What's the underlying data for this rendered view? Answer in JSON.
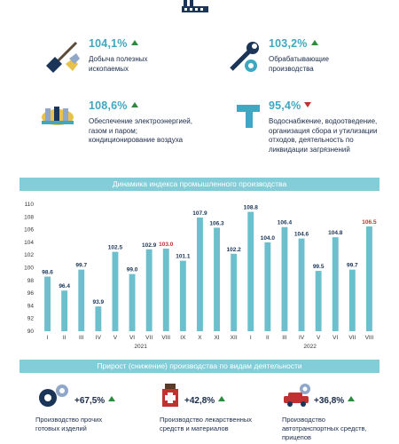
{
  "indicators": [
    {
      "pct": "104,1%",
      "trend": "up",
      "desc": "Добыча полезных ископаемых",
      "icon": "mining-shovel-icon"
    },
    {
      "pct": "103,2%",
      "trend": "up",
      "desc": "Обрабатывающие производства",
      "icon": "wrench-gear-icon"
    },
    {
      "pct": "108,6%",
      "trend": "up",
      "desc": "Обеспечение электроэнергией, газом и паром; кондиционирование воздуха",
      "icon": "power-plant-icon"
    },
    {
      "pct": "95,4%",
      "trend": "down",
      "desc": "Водоснабжение, водоотведение, организация сбора и утилизации отходов, деятельность по ликвидации загрязнений",
      "icon": "water-pipe-icon"
    }
  ],
  "chart_banner": "Динамика индекса промышленного производства",
  "growth_banner": "Прирост (снижение) производства по видам деятельности",
  "chart_data": {
    "type": "bar",
    "categories": [
      "I",
      "II",
      "III",
      "IV",
      "V",
      "VI",
      "VII",
      "VIII",
      "IX",
      "X",
      "XI",
      "XII",
      "I",
      "II",
      "III",
      "IV",
      "V",
      "VI",
      "VII",
      "VIII"
    ],
    "values": [
      98.6,
      96.4,
      99.7,
      93.9,
      102.5,
      99.0,
      102.9,
      103.0,
      101.1,
      107.9,
      106.3,
      102.2,
      108.8,
      104.0,
      106.4,
      104.6,
      99.5,
      104.8,
      99.7,
      106.5
    ],
    "value_labels": [
      "98.6",
      "96.4",
      "99.7",
      "93.9",
      "102.5",
      "99.0",
      "102.9",
      "103.0",
      "101.1",
      "107.9",
      "106.3",
      "102.2",
      "108.8",
      "104.0",
      "106.4",
      "104.6",
      "99.5",
      "104.8",
      "99.7",
      "106.5"
    ],
    "highlight_indices": [
      7,
      19
    ],
    "years": [
      {
        "label": "2021",
        "start": 0,
        "end": 11
      },
      {
        "label": "2022",
        "start": 12,
        "end": 19
      }
    ],
    "ylim": [
      90,
      110
    ],
    "yticks": [
      90,
      92,
      94,
      96,
      98,
      100,
      102,
      104,
      106,
      108,
      110
    ],
    "bar_color": "#6cbfcc",
    "highlight_color": "#c0312f"
  },
  "growth_items": [
    {
      "pct": "+67,5%",
      "desc": "Производство прочих готовых изделий",
      "icon": "gears-icon"
    },
    {
      "pct": "+42,8%",
      "desc": "Производство лекарственных средств и материалов",
      "icon": "medicine-icon"
    },
    {
      "pct": "+36,8%",
      "desc": "Производство автотранспортных средств, прицепов",
      "icon": "car-gear-icon"
    }
  ]
}
